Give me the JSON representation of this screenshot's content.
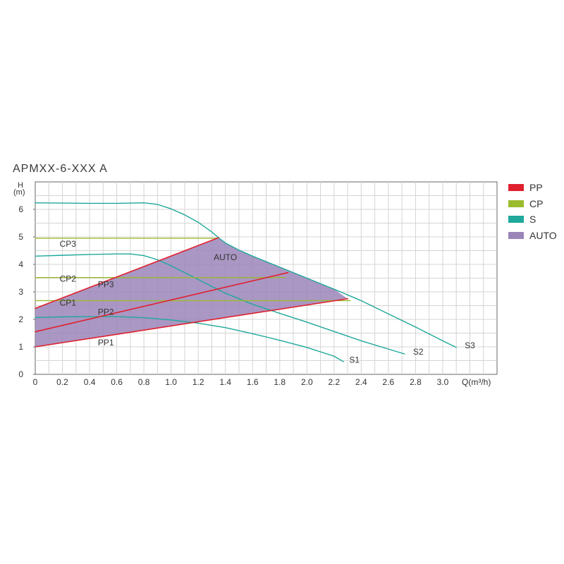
{
  "chart_data": {
    "type": "line",
    "title": "APMXX-6-XXX A",
    "ylabel_top": "H",
    "ylabel_unit": "(m)",
    "xlabel": "Q(m³/h)",
    "xlim": [
      0,
      3.4
    ],
    "ylim": [
      0,
      7
    ],
    "grid": true,
    "x_ticks": [
      "0",
      "0.2",
      "0.4",
      "0.6",
      "0.8",
      "1.0",
      "1.2",
      "1.4",
      "1.6",
      "1.8",
      "2.0",
      "2.2",
      "2.4",
      "2.6",
      "2.8",
      "3.0"
    ],
    "y_ticks": [
      "0",
      "1",
      "2",
      "3",
      "4",
      "5",
      "6"
    ],
    "legend": [
      {
        "label": "PP",
        "color": "#e0202e"
      },
      {
        "label": "CP",
        "color": "#9bbb2e"
      },
      {
        "label": "S",
        "color": "#1fa89b"
      },
      {
        "label": "AUTO",
        "color": "#9b85b8"
      }
    ],
    "legend_position": "right",
    "series": [
      {
        "name": "S1",
        "group": "S",
        "points": [
          [
            0,
            2.07
          ],
          [
            0.2,
            2.09
          ],
          [
            0.4,
            2.1
          ],
          [
            0.6,
            2.1
          ],
          [
            0.8,
            2.06
          ],
          [
            1.0,
            1.98
          ],
          [
            1.2,
            1.86
          ],
          [
            1.4,
            1.7
          ],
          [
            1.6,
            1.48
          ],
          [
            1.8,
            1.24
          ],
          [
            2.0,
            0.98
          ],
          [
            2.2,
            0.66
          ],
          [
            2.27,
            0.46
          ]
        ]
      },
      {
        "name": "S2",
        "group": "S",
        "points": [
          [
            0,
            4.3
          ],
          [
            0.2,
            4.33
          ],
          [
            0.4,
            4.36
          ],
          [
            0.6,
            4.38
          ],
          [
            0.7,
            4.38
          ],
          [
            0.8,
            4.32
          ],
          [
            0.9,
            4.17
          ],
          [
            1.0,
            3.95
          ],
          [
            1.2,
            3.45
          ],
          [
            1.4,
            2.95
          ],
          [
            1.6,
            2.55
          ],
          [
            1.8,
            2.22
          ],
          [
            2.0,
            1.9
          ],
          [
            2.2,
            1.56
          ],
          [
            2.4,
            1.22
          ],
          [
            2.6,
            0.92
          ],
          [
            2.72,
            0.74
          ]
        ]
      },
      {
        "name": "S3",
        "group": "S",
        "points": [
          [
            0,
            6.24
          ],
          [
            0.2,
            6.23
          ],
          [
            0.4,
            6.22
          ],
          [
            0.6,
            6.22
          ],
          [
            0.8,
            6.24
          ],
          [
            0.9,
            6.18
          ],
          [
            1.0,
            6.02
          ],
          [
            1.1,
            5.8
          ],
          [
            1.2,
            5.53
          ],
          [
            1.3,
            5.18
          ],
          [
            1.35,
            4.97
          ],
          [
            1.4,
            4.78
          ],
          [
            1.5,
            4.52
          ],
          [
            1.6,
            4.3
          ],
          [
            1.8,
            3.9
          ],
          [
            2.0,
            3.5
          ],
          [
            2.2,
            3.1
          ],
          [
            2.4,
            2.68
          ],
          [
            2.6,
            2.2
          ],
          [
            2.8,
            1.72
          ],
          [
            3.0,
            1.22
          ],
          [
            3.1,
            0.98
          ]
        ]
      },
      {
        "name": "CP1",
        "group": "CP",
        "points": [
          [
            0,
            2.68
          ],
          [
            2.32,
            2.68
          ]
        ]
      },
      {
        "name": "CP2",
        "group": "CP",
        "points": [
          [
            0,
            3.52
          ],
          [
            1.84,
            3.52
          ]
        ]
      },
      {
        "name": "CP3",
        "group": "CP",
        "points": [
          [
            0,
            4.95
          ],
          [
            1.35,
            4.95
          ]
        ]
      },
      {
        "name": "PP1",
        "group": "PP",
        "points": [
          [
            0,
            1.0
          ],
          [
            2.3,
            2.75
          ]
        ]
      },
      {
        "name": "PP2",
        "group": "PP",
        "points": [
          [
            0,
            1.55
          ],
          [
            1.86,
            3.7
          ]
        ]
      },
      {
        "name": "PP3",
        "group": "PP",
        "points": [
          [
            0,
            2.4
          ],
          [
            1.35,
            4.97
          ]
        ]
      }
    ],
    "area": {
      "name": "AUTO",
      "points": [
        [
          0,
          2.4
        ],
        [
          1.35,
          4.97
        ],
        [
          1.4,
          4.78
        ],
        [
          1.5,
          4.52
        ],
        [
          1.6,
          4.3
        ],
        [
          1.8,
          3.9
        ],
        [
          2.0,
          3.5
        ],
        [
          2.2,
          3.1
        ],
        [
          2.3,
          2.75
        ],
        [
          0,
          1.0
        ]
      ]
    },
    "annotations": [
      {
        "text": "CP3",
        "x": 0.24,
        "y": 4.64
      },
      {
        "text": "CP2",
        "x": 0.24,
        "y": 3.37
      },
      {
        "text": "PP3",
        "x": 0.52,
        "y": 3.17
      },
      {
        "text": "CP1",
        "x": 0.24,
        "y": 2.5
      },
      {
        "text": "PP2",
        "x": 0.52,
        "y": 2.17
      },
      {
        "text": "PP1",
        "x": 0.52,
        "y": 1.05
      },
      {
        "text": "AUTO",
        "x": 1.4,
        "y": 4.15
      },
      {
        "text": "S1",
        "x": 2.35,
        "y": 0.42
      },
      {
        "text": "S2",
        "x": 2.82,
        "y": 0.72
      },
      {
        "text": "S3",
        "x": 3.2,
        "y": 0.95
      }
    ]
  }
}
